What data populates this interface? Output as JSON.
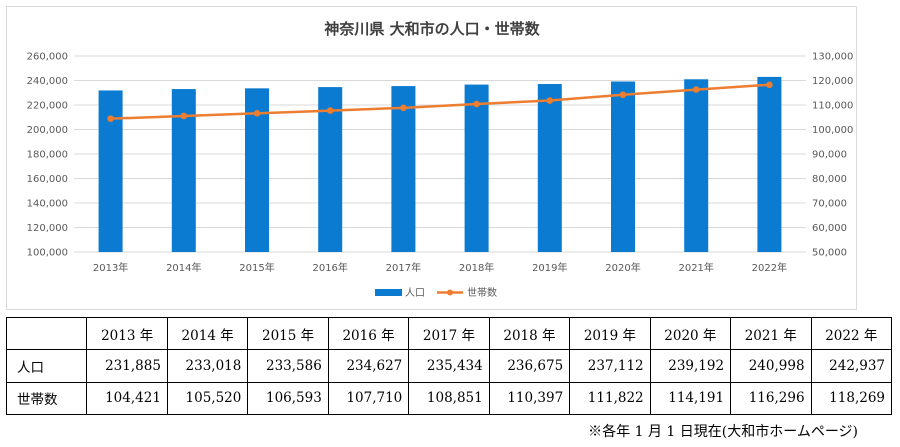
{
  "chart_data": {
    "type": "bar",
    "title": "神奈川県 大和市の人口・世帯数",
    "categories": [
      "2013年",
      "2014年",
      "2015年",
      "2016年",
      "2017年",
      "2018年",
      "2019年",
      "2020年",
      "2021年",
      "2022年"
    ],
    "series": [
      {
        "name": "人口",
        "type": "bar",
        "axis": "left",
        "color": "#0a7bd0",
        "values": [
          231885,
          233018,
          233586,
          234627,
          235434,
          236675,
          237112,
          239192,
          240998,
          242937
        ]
      },
      {
        "name": "世帯数",
        "type": "line",
        "axis": "right",
        "color": "#ed7d31",
        "values": [
          104421,
          105520,
          106593,
          107710,
          108851,
          110397,
          111822,
          114191,
          116296,
          118269
        ]
      }
    ],
    "ylim_left": [
      100000,
      260000
    ],
    "ylim_right": [
      50000,
      130000
    ],
    "left_ticks": [
      "100,000",
      "120,000",
      "140,000",
      "160,000",
      "180,000",
      "200,000",
      "220,000",
      "240,000",
      "260,000"
    ],
    "right_ticks": [
      "50,000",
      "60,000",
      "70,000",
      "80,000",
      "90,000",
      "100,000",
      "110,000",
      "120,000",
      "130,000"
    ],
    "grid": true,
    "legend_position": "bottom"
  },
  "table": {
    "header": [
      "",
      "2013 年",
      "2014 年",
      "2015 年",
      "2016 年",
      "2017 年",
      "2018 年",
      "2019 年",
      "2020 年",
      "2021 年",
      "2022 年"
    ],
    "rows": [
      {
        "label": "人口",
        "values": [
          "231,885",
          "233,018",
          "233,586",
          "234,627",
          "235,434",
          "236,675",
          "237,112",
          "239,192",
          "240,998",
          "242,937"
        ]
      },
      {
        "label": "世帯数",
        "values": [
          "104,421",
          "105,520",
          "106,593",
          "107,710",
          "108,851",
          "110,397",
          "111,822",
          "114,191",
          "116,296",
          "118,269"
        ]
      }
    ]
  },
  "footnote": "※各年 1 月 1 日現在(大和市ホームページ)"
}
